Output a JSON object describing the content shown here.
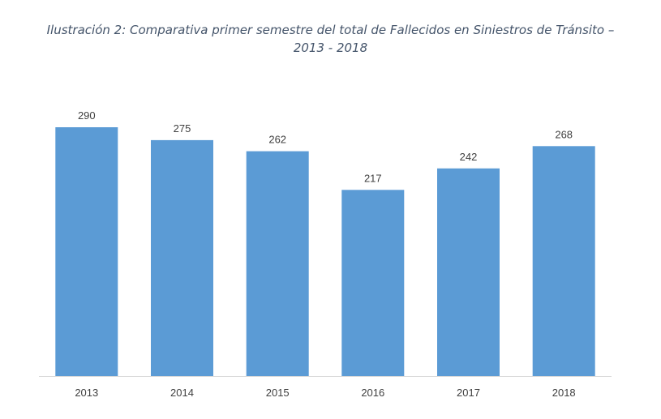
{
  "chart_data": {
    "type": "bar",
    "title_line1": "Ilustración 2: Comparativa primer semestre del total de Fallecidos en Siniestros de Tránsito –",
    "title_line2": "2013 - 2018",
    "xlabel": "",
    "ylabel": "",
    "categories": [
      "2013",
      "2014",
      "2015",
      "2016",
      "2017",
      "2018"
    ],
    "values": [
      290,
      275,
      262,
      217,
      242,
      268
    ],
    "data_labels": [
      "290",
      "275",
      "262",
      "217",
      "242",
      "268"
    ],
    "ylim": [
      0,
      290
    ],
    "grid": false,
    "legend": "none",
    "colors": {
      "bar": "#5b9bd5",
      "axis": "#d9d9d9",
      "text": "#404040",
      "title": "#44546a"
    }
  }
}
